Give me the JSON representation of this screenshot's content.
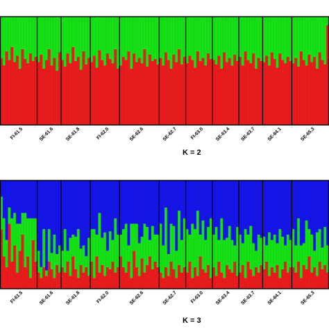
{
  "chart_data": [
    {
      "type": "bar",
      "subtype": "stacked-admixture",
      "title": "",
      "panel_label": "K = 2",
      "ylim": [
        0,
        1
      ],
      "series_colors": [
        "#e81c1c",
        "#16e016"
      ],
      "populations": [
        "FI-61.5",
        "SE-61.6",
        "SE-61.8",
        "FI-62.0",
        "SE-62.6",
        "SE-62.7",
        "FI-63.0",
        "SE-63.4",
        "SE-63.7",
        "SE-64.1",
        "SE-65.3"
      ],
      "samples_per_population": [
        14,
        9,
        11,
        11,
        15,
        10,
        10,
        10,
        9,
        11,
        14
      ],
      "cluster1_fraction": [
        0.62,
        0.55,
        0.68,
        0.6,
        0.72,
        0.58,
        0.64,
        0.52,
        0.7,
        0.61,
        0.57,
        0.66,
        0.59,
        0.63,
        0.58,
        0.65,
        0.52,
        0.6,
        0.7,
        0.55,
        0.62,
        0.5,
        0.67,
        0.6,
        0.54,
        0.66,
        0.57,
        0.72,
        0.59,
        0.63,
        0.51,
        0.68,
        0.56,
        0.62,
        0.58,
        0.64,
        0.53,
        0.69,
        0.6,
        0.55,
        0.66,
        0.61,
        0.57,
        0.7,
        0.52,
        0.55,
        0.63,
        0.6,
        0.68,
        0.52,
        0.66,
        0.58,
        0.62,
        0.57,
        0.7,
        0.54,
        0.65,
        0.59,
        0.61,
        0.56,
        0.62,
        0.55,
        0.67,
        0.6,
        0.52,
        0.65,
        0.58,
        0.7,
        0.56,
        0.63,
        0.57,
        0.64,
        0.6,
        0.53,
        0.68,
        0.59,
        0.62,
        0.55,
        0.66,
        0.61,
        0.6,
        0.56,
        0.64,
        0.52,
        0.67,
        0.58,
        0.62,
        0.55,
        0.65,
        0.59,
        0.63,
        0.55,
        0.68,
        0.6,
        0.57,
        0.66,
        0.52,
        0.62,
        0.59,
        0.58,
        0.64,
        0.55,
        0.67,
        0.61,
        0.53,
        0.66,
        0.6,
        0.57,
        0.63,
        0.59,
        0.57,
        0.62,
        0.54,
        0.68,
        0.6,
        0.55,
        0.65,
        0.58,
        0.63,
        0.52,
        0.67,
        0.6,
        0.56,
        0.92
      ]
    },
    {
      "type": "bar",
      "subtype": "stacked-admixture",
      "title": "",
      "panel_label": "K = 3",
      "ylim": [
        0,
        1
      ],
      "series_colors": [
        "#e81c1c",
        "#16e016",
        "#1515e8"
      ],
      "populations": [
        "FI-61.5",
        "SE-61.6",
        "SE-61.8",
        "FI-62.0",
        "SE-62.6",
        "SE-62.7",
        "FI-63.0",
        "SE-63.4",
        "SE-63.7",
        "SE-64.1",
        "SE-65.3"
      ],
      "samples_per_population": [
        14,
        9,
        11,
        11,
        15,
        10,
        10,
        10,
        9,
        11,
        14
      ],
      "cluster1_fraction": [
        0.55,
        0.3,
        0.2,
        0.6,
        0.25,
        0.4,
        0.15,
        0.35,
        0.5,
        0.2,
        0.3,
        0.1,
        0.45,
        0.25,
        0.15,
        0.1,
        0.2,
        0.12,
        0.25,
        0.18,
        0.1,
        0.22,
        0.15,
        0.2,
        0.15,
        0.25,
        0.12,
        0.3,
        0.18,
        0.1,
        0.22,
        0.15,
        0.2,
        0.12,
        0.25,
        0.1,
        0.3,
        0.15,
        0.22,
        0.12,
        0.2,
        0.18,
        0.25,
        0.15,
        0.2,
        0.3,
        0.2,
        0.15,
        0.25,
        0.1,
        0.35,
        0.2,
        0.12,
        0.28,
        0.15,
        0.22,
        0.3,
        0.18,
        0.25,
        0.2,
        0.15,
        0.1,
        0.2,
        0.12,
        0.25,
        0.18,
        0.1,
        0.22,
        0.15,
        0.2,
        0.15,
        0.25,
        0.1,
        0.2,
        0.12,
        0.3,
        0.18,
        0.15,
        0.22,
        0.1,
        0.2,
        0.12,
        0.25,
        0.15,
        0.1,
        0.22,
        0.18,
        0.15,
        0.25,
        0.12,
        0.15,
        0.22,
        0.1,
        0.25,
        0.18,
        0.12,
        0.2,
        0.15,
        0.22,
        0.18,
        0.25,
        0.12,
        0.2,
        0.15,
        0.22,
        0.1,
        0.18,
        0.25,
        0.15,
        0.2,
        0.2,
        0.15,
        0.25,
        0.1,
        0.22,
        0.18,
        0.3,
        0.15,
        0.2,
        0.12,
        0.25,
        0.18,
        0.22,
        0.15
      ],
      "cluster2_fraction": [
        0.3,
        0.35,
        0.25,
        0.15,
        0.4,
        0.3,
        0.45,
        0.25,
        0.2,
        0.5,
        0.35,
        0.55,
        0.2,
        0.4,
        0.2,
        0.1,
        0.35,
        0.05,
        0.3,
        0.15,
        0.4,
        0.1,
        0.25,
        0.15,
        0.4,
        0.1,
        0.35,
        0.2,
        0.3,
        0.45,
        0.15,
        0.25,
        0.1,
        0.35,
        0.3,
        0.45,
        0.2,
        0.55,
        0.25,
        0.4,
        0.15,
        0.35,
        0.2,
        0.5,
        0.3,
        0.2,
        0.35,
        0.45,
        0.15,
        0.5,
        0.25,
        0.4,
        0.3,
        0.2,
        0.45,
        0.35,
        0.15,
        0.4,
        0.25,
        0.3,
        0.45,
        0.3,
        0.55,
        0.2,
        0.35,
        0.4,
        0.25,
        0.5,
        0.3,
        0.45,
        0.4,
        0.25,
        0.5,
        0.35,
        0.6,
        0.2,
        0.45,
        0.3,
        0.35,
        0.55,
        0.3,
        0.45,
        0.2,
        0.5,
        0.35,
        0.25,
        0.4,
        0.3,
        0.15,
        0.45,
        0.35,
        0.2,
        0.45,
        0.25,
        0.4,
        0.3,
        0.15,
        0.35,
        0.25,
        0.3,
        0.15,
        0.4,
        0.25,
        0.35,
        0.2,
        0.45,
        0.3,
        0.15,
        0.35,
        0.25,
        0.35,
        0.25,
        0.4,
        0.3,
        0.2,
        0.45,
        0.25,
        0.35,
        0.15,
        0.4,
        0.3,
        0.2,
        0.35,
        0.25
      ]
    }
  ]
}
